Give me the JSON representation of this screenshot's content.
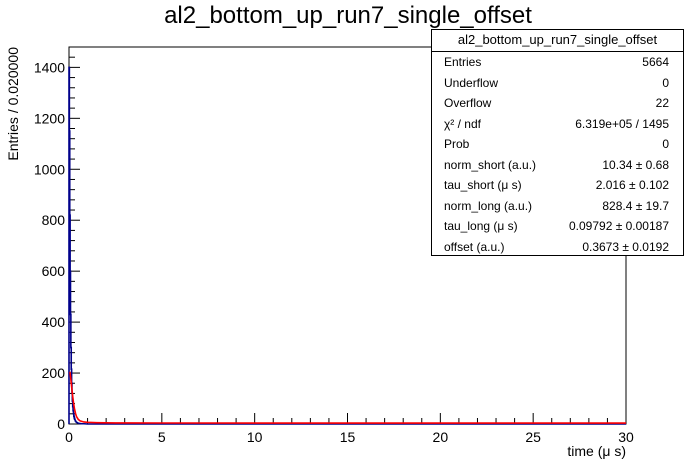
{
  "chart_data": {
    "type": "histogram",
    "title": "al2_bottom_up_run7_single_offset",
    "xlabel": "time (μ s)",
    "ylabel": "Entries / 0.020000",
    "xlim": [
      0,
      30
    ],
    "ylim": [
      0,
      1480
    ],
    "x_ticks": [
      "0",
      "5",
      "10",
      "15",
      "20",
      "25",
      "30"
    ],
    "y_ticks": [
      "0",
      "200",
      "400",
      "600",
      "800",
      "1000",
      "1200",
      "1400"
    ],
    "x_tick_values": [
      0,
      5,
      10,
      15,
      20,
      25,
      30
    ],
    "y_tick_values": [
      0,
      200,
      400,
      600,
      800,
      1000,
      1200,
      1400
    ],
    "bin_width": 0.02,
    "histogram_series": {
      "color": "#00008b",
      "x": [
        0.01,
        0.03,
        0.05,
        0.07,
        0.09,
        0.11,
        0.13,
        0.15,
        0.17,
        0.19,
        0.21,
        0.23,
        0.25,
        0.27,
        0.29,
        0.31,
        0.35,
        0.4,
        0.45,
        0.5,
        0.6,
        0.7,
        0.8,
        1.0
      ],
      "y": [
        1400,
        1150,
        820,
        600,
        430,
        300,
        215,
        160,
        120,
        90,
        68,
        52,
        40,
        30,
        24,
        19,
        12,
        7,
        5,
        3,
        2,
        1,
        1,
        0
      ]
    },
    "fit_series": {
      "color": "#ff0000",
      "x": [
        0.05,
        0.1,
        0.15,
        0.2,
        0.25,
        0.3,
        0.35,
        0.4,
        0.5,
        0.6,
        0.8,
        1.0,
        1.5,
        2.0,
        2.5,
        3.0,
        5.0,
        10.0,
        15.0,
        20.0,
        25.0,
        30.0
      ],
      "y": [
        205,
        175,
        140,
        108,
        80,
        58,
        42,
        30,
        18,
        12,
        8,
        6.5,
        5.3,
        4.7,
        4.3,
        4.0,
        3.9,
        3.8,
        3.8,
        3.8,
        3.8,
        3.8
      ]
    }
  },
  "stats_box": {
    "title": "al2_bottom_up_run7_single_offset",
    "rows": [
      {
        "label": "Entries",
        "value": "5664"
      },
      {
        "label": "Underflow",
        "value": "0"
      },
      {
        "label": "Overflow",
        "value": "22"
      },
      {
        "label": "χ² / ndf",
        "value": "6.319e+05 / 1495"
      },
      {
        "label": "Prob",
        "value": "0"
      },
      {
        "label": "norm_short (a.u.)",
        "value": "10.34 ± 0.68"
      },
      {
        "label": "tau_short (μ s)",
        "value": "2.016 ± 0.102"
      },
      {
        "label": "norm_long (a.u.)",
        "value": "828.4 ± 19.7"
      },
      {
        "label": "tau_long (μ s)",
        "value": "0.09792 ± 0.00187"
      },
      {
        "label": "offset (a.u.)",
        "value": "0.3673 ± 0.0192"
      }
    ]
  }
}
